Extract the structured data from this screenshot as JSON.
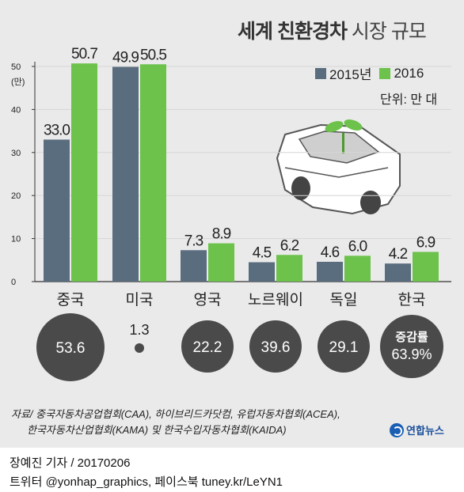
{
  "title": {
    "bold": "세계 친환경차",
    "light": "시장 규모"
  },
  "legend": [
    {
      "label": "2015년",
      "color": "#5a6d7f"
    },
    {
      "label": "2016",
      "color": "#6cc24a"
    }
  ],
  "unit_label": "단위: 만 대",
  "y_axis_unit": "(만)",
  "chart_data": {
    "type": "bar",
    "categories": [
      "중국",
      "미국",
      "영국",
      "노르웨이",
      "독일",
      "한국"
    ],
    "series": [
      {
        "name": "2015년",
        "values": [
          33.0,
          49.9,
          7.3,
          4.5,
          4.6,
          4.2
        ],
        "labels": [
          "33.0",
          "49.9",
          "7.3",
          "4.5",
          "4.6",
          "4.2"
        ]
      },
      {
        "name": "2016",
        "values": [
          50.7,
          50.5,
          8.9,
          6.2,
          6.0,
          6.9
        ],
        "labels": [
          "50.7",
          "50.5",
          "8.9",
          "6.2",
          "6.0",
          "6.9"
        ]
      }
    ],
    "yticks": [
      "0",
      "10",
      "20",
      "30",
      "40",
      "50"
    ],
    "ylim": [
      0,
      50
    ],
    "growth_rates": [
      "53.6",
      "1.3",
      "22.2",
      "39.6",
      "29.1",
      "63.9%"
    ],
    "growth_label": "증감률",
    "growth_values": [
      53.6,
      1.3,
      22.2,
      39.6,
      29.1,
      63.9
    ]
  },
  "source": {
    "line1": "자료/ 중국자동차공업협회(CAA), 하이브리드카닷컴, 유럽자동차협회(ACEA),",
    "line2": "한국자동차산업협회(KAMA) 및 한국수입자동차협회(KAIDA)"
  },
  "logo_text": "연합뉴스",
  "credit": {
    "author": "장예진 기자 / 20170206",
    "social": "트위터 @yonhap_graphics, 페이스북 tuney.kr/LeYN1"
  },
  "colors": {
    "bar2015": "#5a6d7f",
    "bar2016": "#6cc24a",
    "circle": "#4a4a4a",
    "panel": "#eaeaea"
  }
}
